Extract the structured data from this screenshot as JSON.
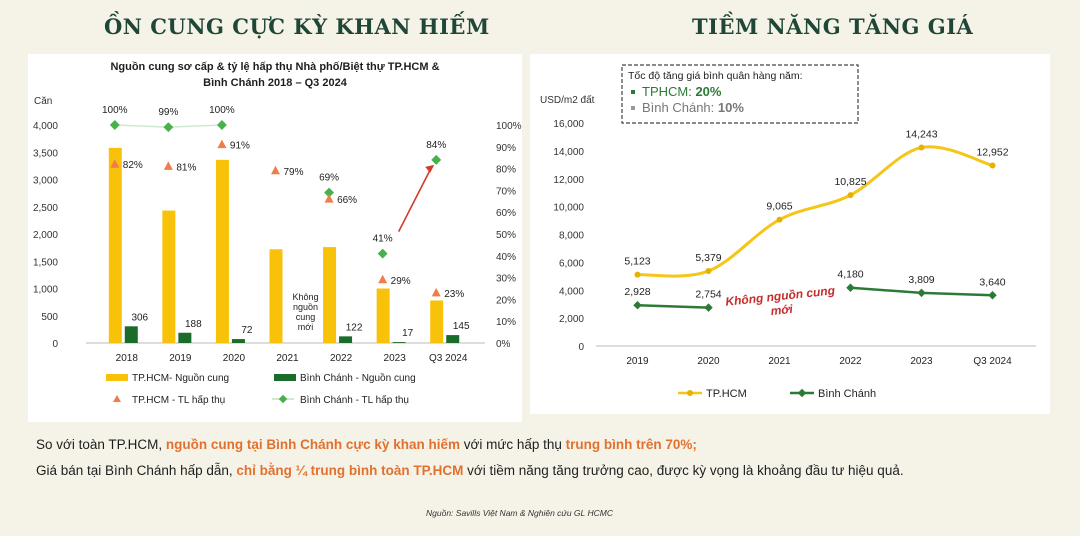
{
  "headings": {
    "left": "ỒN CUNG CỰC KỲ KHAN HIẾM",
    "right": "TIỀM NĂNG TĂNG GIÁ"
  },
  "chart_data": [
    {
      "type": "bar",
      "title_lines": [
        "Nguồn cung sơ cấp & tỷ lệ hấp thụ Nhà phố/Biệt thự TP.HCM &",
        "Bình Chánh 2018 – Q3 2024"
      ],
      "ylabel": "Căn",
      "ylim": [
        0,
        4000
      ],
      "yticks": [
        "4,000",
        "3,500",
        "3,000",
        "2,500",
        "2,000",
        "1,500",
        "1,000",
        "500",
        "0"
      ],
      "y2ticks": [
        "100%",
        "90%",
        "80%",
        "70%",
        "60%",
        "50%",
        "40%",
        "30%",
        "20%",
        "10%",
        "0%"
      ],
      "categories": [
        "2018",
        "2019",
        "2020",
        "2021",
        "2022",
        "2023",
        "Q3 2024"
      ],
      "series": [
        {
          "name": "TP.HCM- Nguồn cung",
          "color": "#f9c20a",
          "values": [
            3580,
            2430,
            3360,
            1720,
            1760,
            1000,
            780
          ]
        },
        {
          "name": "Bình Chánh - Nguồn cung",
          "color": "#1b6b2b",
          "values": [
            306,
            188,
            72,
            null,
            122,
            17,
            145
          ],
          "labels": [
            "306",
            "188",
            "72",
            "",
            "122",
            "17",
            "145"
          ]
        },
        {
          "name": "TP.HCM - TL hấp thụ",
          "color": "#f07c4a",
          "values": [
            82,
            81,
            91,
            79,
            66,
            29,
            23
          ],
          "labels": [
            "82%",
            "81%",
            "91%",
            "79%",
            "66%",
            "29%",
            "23%"
          ]
        },
        {
          "name": "Bình Chánh - TL hấp thụ",
          "color": "#48b14c",
          "values": [
            100,
            99,
            100,
            null,
            69,
            41,
            84
          ],
          "labels": [
            "100%",
            "99%",
            "100%",
            "",
            "69%",
            "41%",
            "84%"
          ]
        }
      ],
      "annotation": [
        "Không",
        "nguồn",
        "cung",
        "mới"
      ]
    },
    {
      "type": "line",
      "ylabel": "USD/m2 đất",
      "ylim": [
        0,
        16000
      ],
      "yticks": [
        "16,000",
        "14,000",
        "12,000",
        "10,000",
        "8,000",
        "6,000",
        "4,000",
        "2,000",
        "0"
      ],
      "categories": [
        "2019",
        "2020",
        "2021",
        "2022",
        "2023",
        "Q3 2024"
      ],
      "series": [
        {
          "name": "TP.HCM",
          "color": "#f5c518",
          "values": [
            5123,
            5379,
            9065,
            10825,
            14243,
            12952
          ],
          "labels": [
            "5,123",
            "5,379",
            "9,065",
            "10,825",
            "14,243",
            "12,952"
          ]
        },
        {
          "name": "Bình Chánh",
          "color": "#2d7a36",
          "values": [
            2928,
            2754,
            null,
            4180,
            3809,
            3640
          ],
          "labels": [
            "2,928",
            "2,754",
            "",
            "4,180",
            "3,809",
            "3,640"
          ]
        }
      ],
      "box": {
        "title": "Tốc độ tăng giá bình quân hàng năm:",
        "items": [
          {
            "label": "TPHCM: ",
            "value": "20%"
          },
          {
            "label": "Bình Chánh: ",
            "value": "10%"
          }
        ]
      },
      "annotation": [
        "Không nguồn cung",
        "mới"
      ]
    }
  ],
  "captions": {
    "line1": {
      "a": "So với toàn TP.HCM, ",
      "b": "nguồn cung tại Bình Chánh cực kỳ khan hiếm",
      "c": " với mức hấp thụ ",
      "d": "trung bình trên 70%;"
    },
    "line2": {
      "a": "Giá bán tại Bình Chánh hấp dẫn, ",
      "b": "chỉ bằng ¼ trung bình toàn TP.HCM",
      "c": " với tiềm năng tăng trưởng cao, được kỳ vọng là khoảng đầu tư hiệu quả."
    }
  },
  "source": "Nguồn: Savills Việt Nam & Nghiên cứu GL HCMC"
}
